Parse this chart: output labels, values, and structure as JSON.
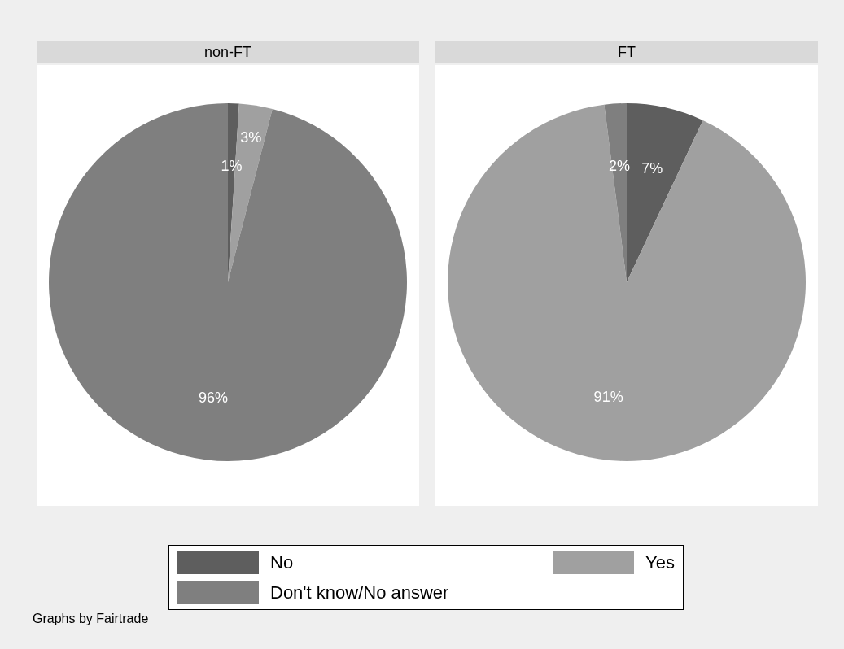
{
  "chart_data": {
    "type": "pie",
    "categories": [
      "No",
      "Yes",
      "Don't know/No answer"
    ],
    "colors": [
      "#5e5e5e",
      "#a0a0a0",
      "#7f7f7f"
    ],
    "legend": "bottom",
    "annotations": [
      "Graphs by Fairtrade"
    ],
    "series": [
      {
        "name": "non-FT",
        "values": [
          1,
          3,
          96
        ],
        "value_labels": [
          "1%",
          "3%",
          "96%"
        ]
      },
      {
        "name": "FT",
        "values": [
          7,
          91,
          2
        ],
        "value_labels": [
          "7%",
          "91%",
          "2%"
        ]
      }
    ]
  }
}
